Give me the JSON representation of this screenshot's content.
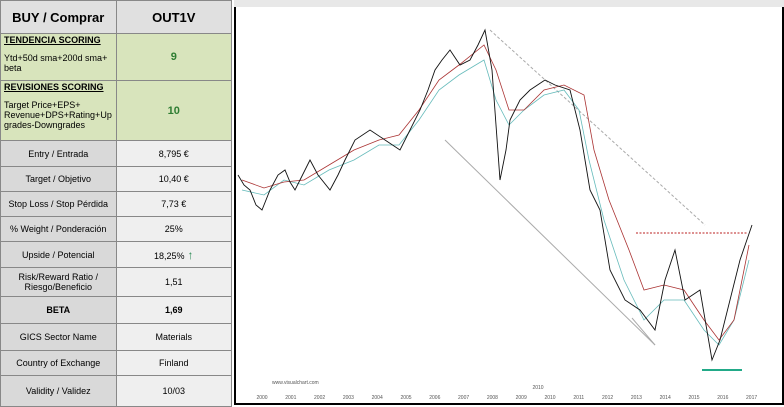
{
  "header": {
    "left": "BUY / Comprar",
    "right": "OUT1V"
  },
  "scoring": [
    {
      "title": "TENDENCIA SCORING",
      "text": "Ytd+50d sma+200d  sma+ beta",
      "value": "9"
    },
    {
      "title": "REVISIONES SCORING",
      "text": "Target Price+EPS+ Revenue+DPS+Rating+Up grades-Downgrades",
      "value": "10"
    }
  ],
  "rows": [
    [
      "Entry / Entrada",
      "8,795 €"
    ],
    [
      "Target / Objetivo",
      "10,40 €"
    ],
    [
      "Stop Loss / Stop Pérdida",
      "7,73 €"
    ],
    [
      "% Weight / Ponderación",
      "25%"
    ],
    [
      "Upside / Potencial",
      "18,25%"
    ],
    [
      "Risk/Reward  Ratio / Riesgo/Beneficio",
      "1,51"
    ],
    [
      "BETA",
      "1,69"
    ],
    [
      "GICS Sector Name",
      "Materials"
    ],
    [
      "Country of Exchange",
      "Finland"
    ],
    [
      "Validity / Validez",
      "10/03"
    ]
  ],
  "chart": {
    "source": "www.visualchart.com",
    "center_label": "2010",
    "years": [
      "2000",
      "2001",
      "2002",
      "2003",
      "2004",
      "2005",
      "2006",
      "2007",
      "2008",
      "2009",
      "2010",
      "2011",
      "2012",
      "2013",
      "2014",
      "2015",
      "2016",
      "2017"
    ]
  }
}
